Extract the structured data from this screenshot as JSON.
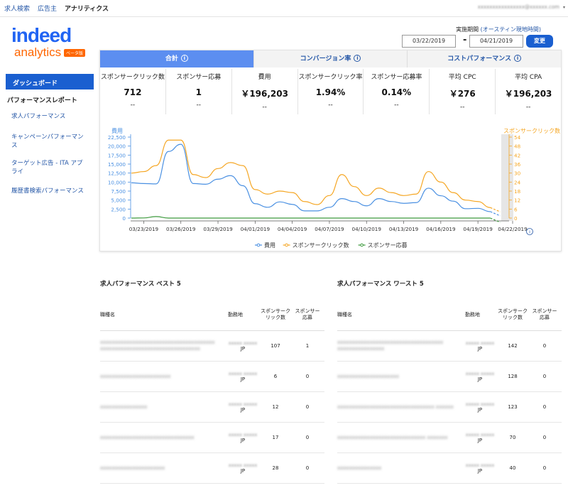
{
  "topnav": {
    "items": [
      "求人検索",
      "広告主",
      "アナリティクス"
    ],
    "email": "xxxxxxxxxxxxxxxx@xxxxxx.com"
  },
  "logo": {
    "brand": "indeed",
    "sub": "analytics",
    "badge": "ベータ版"
  },
  "sidebar": {
    "dashboard": "ダッシュボード",
    "section": "パフォーマンスレポート",
    "items": [
      "求人パフォーマンス",
      "キャンペーンパフォーマンス",
      "ターゲット広告 - ITA アプライ",
      "履歴書検索パフォーマンス"
    ]
  },
  "period": {
    "label": "実施期間",
    "timezone": "(オースティン現地時間)",
    "start": "03/22/2019",
    "end": "04/21/2019",
    "dash": "-",
    "button": "変更"
  },
  "tabs": [
    "合計",
    "コンバージョン率",
    "コストパフォーマンス"
  ],
  "metrics": [
    {
      "label": "スポンサークリック数",
      "value": "712",
      "change": "--"
    },
    {
      "label": "スポンサー応募",
      "value": "1",
      "change": "--"
    },
    {
      "label": "費用",
      "value": "￥196,203",
      "change": "--"
    },
    {
      "label": "スポンサークリック率",
      "value": "1.94%",
      "change": "--"
    },
    {
      "label": "スポンサー応募率",
      "value": "0.14%",
      "change": "--"
    },
    {
      "label": "平均 CPC",
      "value": "￥276",
      "change": "--"
    },
    {
      "label": "平均 CPA",
      "value": "￥196,203",
      "change": "--"
    }
  ],
  "chart_data": {
    "type": "line",
    "left_axis_label": "費用",
    "right_axis_label": "スポンサークリック数",
    "left_ticks": [
      "0",
      "2,500",
      "5,000",
      "7,500",
      "10,000",
      "12,500",
      "15,000",
      "17,500",
      "20,000",
      "22,500"
    ],
    "right_ticks": [
      "0",
      "6",
      "12",
      "18",
      "24",
      "30",
      "36",
      "42",
      "48",
      "54"
    ],
    "ylim_left": [
      0,
      22500
    ],
    "ylim_right": [
      0,
      54
    ],
    "x_tick_labels": [
      "03/23/2019",
      "03/26/2019",
      "03/29/2019",
      "04/01/2019",
      "04/04/2019",
      "04/07/2019",
      "04/10/2019",
      "04/13/2019",
      "04/16/2019",
      "04/19/2019",
      "04/22/2019"
    ],
    "series": [
      {
        "name": "費用",
        "color": "#4a90e2",
        "axis": "left",
        "values": [
          9800,
          9600,
          9500,
          18500,
          20500,
          9600,
          9400,
          10800,
          11800,
          9000,
          4000,
          3000,
          4500,
          3800,
          2000,
          2000,
          3000,
          5400,
          4600,
          3400,
          5400,
          4600,
          4100,
          4300,
          8300,
          6200,
          4700,
          2600,
          2700,
          1800,
          3200
        ]
      },
      {
        "name": "スポンサークリック数",
        "color": "#f5a623",
        "axis": "right",
        "values": [
          30,
          31,
          35,
          52,
          52,
          29,
          27,
          33,
          37,
          35,
          19,
          16,
          18,
          17,
          11,
          9,
          15,
          29,
          21,
          15,
          20,
          17,
          15,
          16,
          31,
          24,
          17,
          12,
          11,
          7,
          16
        ]
      },
      {
        "name": "スポンサー応募",
        "color": "#3d9a3d",
        "axis": "right",
        "values": [
          0,
          0.1,
          1,
          0,
          0,
          0,
          0,
          0,
          0,
          0,
          0,
          0,
          0,
          0,
          0,
          0,
          0,
          0,
          0,
          0,
          0,
          0,
          0,
          0,
          0,
          0,
          0,
          0,
          0,
          0,
          0
        ]
      }
    ]
  },
  "best": {
    "title": "求人パフォーマンス ベスト 5",
    "headers": [
      "職種名",
      "勤務地",
      "スポンサークリック数",
      "スポンサー応募"
    ],
    "rows": [
      {
        "name": "xxxxxxxxxxxxxxxxxxxxxxxxxxxxxxxxxxxxxxx xxxxxxxxxxxxxxxxxxxxxxxxxxxxxxxxxx",
        "city": "xxxxx xxxxx",
        "cc": "JP",
        "clicks": "107",
        "apps": "1"
      },
      {
        "name": "xxxxxxxxxxxxxxxxxxxxxxxx",
        "city": "xxxxx xxxxx",
        "cc": "JP",
        "clicks": "6",
        "apps": "0"
      },
      {
        "name": "xxxxxxxxxxxxxxxx",
        "city": "xxxxx xxxxx",
        "cc": "JP",
        "clicks": "12",
        "apps": "0"
      },
      {
        "name": "xxxxxxxxxxxxxxxxxxxxxxxxxxxxxxxx",
        "city": "xxxxx xxxxx",
        "cc": "JP",
        "clicks": "17",
        "apps": "0"
      },
      {
        "name": "xxxxxxxxxxxxxxxxxxxxxx",
        "city": "xxxxx xxxxx",
        "cc": "JP",
        "clicks": "28",
        "apps": "0"
      }
    ]
  },
  "worst": {
    "title": "求人パフォーマンス ワースト 5",
    "headers": [
      "職種名",
      "勤務地",
      "スポンサークリック数",
      "スポンサー応募"
    ],
    "rows": [
      {
        "name": "xxxxxxxxxxxxxxxxxxxxxxxxxxxxxxxxxxxx xxxxxxxxxxxxxxxx",
        "city": "xxxxx xxxxx",
        "cc": "JP",
        "clicks": "142",
        "apps": "0"
      },
      {
        "name": "xxxxxxxxxxxxxxxxxxxxx",
        "city": "xxxxx xxxxx",
        "cc": "JP",
        "clicks": "128",
        "apps": "0"
      },
      {
        "name": "xxxxxxxxxxxxxxxxxxxxxxxxxxxxxxxxx xxxxxx",
        "city": "xxxxx xxxxx",
        "cc": "JP",
        "clicks": "123",
        "apps": "0"
      },
      {
        "name": "xxxxxxxxxxxxxxxxxxxxxxxxxxxxxx xxxxxxx",
        "city": "xxxxx xxxxx",
        "cc": "JP",
        "clicks": "70",
        "apps": "0"
      },
      {
        "name": "xxxxxxxxxxxxxxx",
        "city": "xxxxx xxxxx",
        "cc": "JP",
        "clicks": "40",
        "apps": "0"
      }
    ]
  }
}
